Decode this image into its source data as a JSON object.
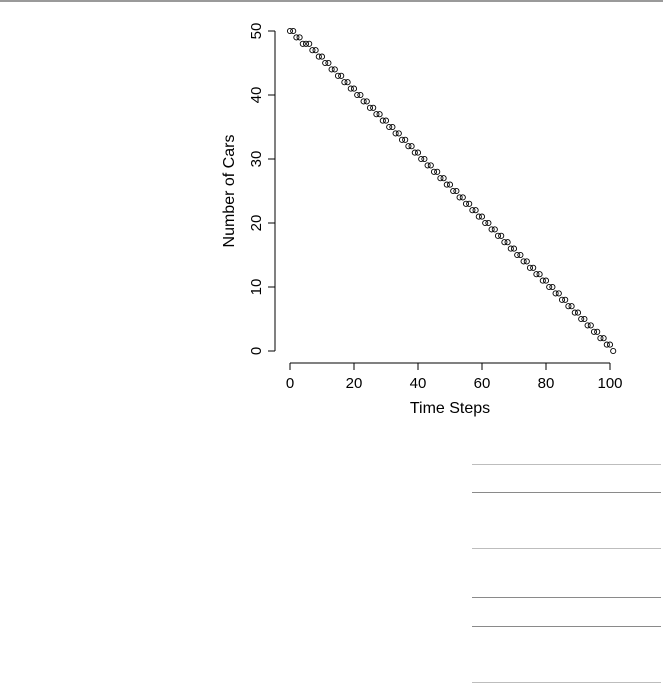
{
  "chart_data": {
    "type": "scatter",
    "title": "",
    "xlabel": "Time Steps",
    "ylabel": "Number of Cars",
    "xlim": [
      0,
      100
    ],
    "ylim": [
      0,
      50
    ],
    "xticks": [
      0,
      20,
      40,
      60,
      80,
      100
    ],
    "yticks": [
      0,
      10,
      20,
      30,
      40,
      50
    ],
    "grid": false,
    "marker": "open-circle",
    "x": [
      0,
      1,
      2,
      3,
      4,
      5,
      6,
      7,
      8,
      9,
      10,
      11,
      12,
      13,
      14,
      15,
      16,
      17,
      18,
      19,
      20,
      21,
      22,
      23,
      24,
      25,
      26,
      27,
      28,
      29,
      30,
      31,
      32,
      33,
      34,
      35,
      36,
      37,
      38,
      39,
      40,
      41,
      42,
      43,
      44,
      45,
      46,
      47,
      48,
      49,
      50,
      51,
      52,
      53,
      54,
      55,
      56,
      57,
      58,
      59,
      60,
      61,
      62,
      63,
      64,
      65,
      66,
      67,
      68,
      69,
      70,
      71,
      72,
      73,
      74,
      75,
      76,
      77,
      78,
      79,
      80,
      81,
      82,
      83,
      84,
      85,
      86,
      87,
      88,
      89,
      90,
      91,
      92,
      93,
      94,
      95,
      96,
      97,
      98,
      99,
      100,
      101
    ],
    "y": [
      50,
      50,
      49,
      49,
      48,
      48,
      48,
      47,
      47,
      46,
      46,
      45,
      45,
      44,
      44,
      43,
      43,
      42,
      42,
      41,
      41,
      40,
      40,
      39,
      39,
      38,
      38,
      37,
      37,
      36,
      36,
      35,
      35,
      34,
      34,
      33,
      33,
      32,
      32,
      31,
      31,
      30,
      30,
      29,
      29,
      28,
      28,
      27,
      27,
      26,
      26,
      25,
      25,
      24,
      24,
      23,
      23,
      22,
      22,
      21,
      21,
      20,
      20,
      19,
      19,
      18,
      18,
      17,
      17,
      16,
      16,
      15,
      15,
      14,
      14,
      13,
      13,
      12,
      12,
      11,
      11,
      10,
      10,
      9,
      9,
      8,
      8,
      7,
      7,
      6,
      6,
      5,
      5,
      4,
      4,
      3,
      3,
      2,
      2,
      1,
      1,
      0
    ]
  }
}
